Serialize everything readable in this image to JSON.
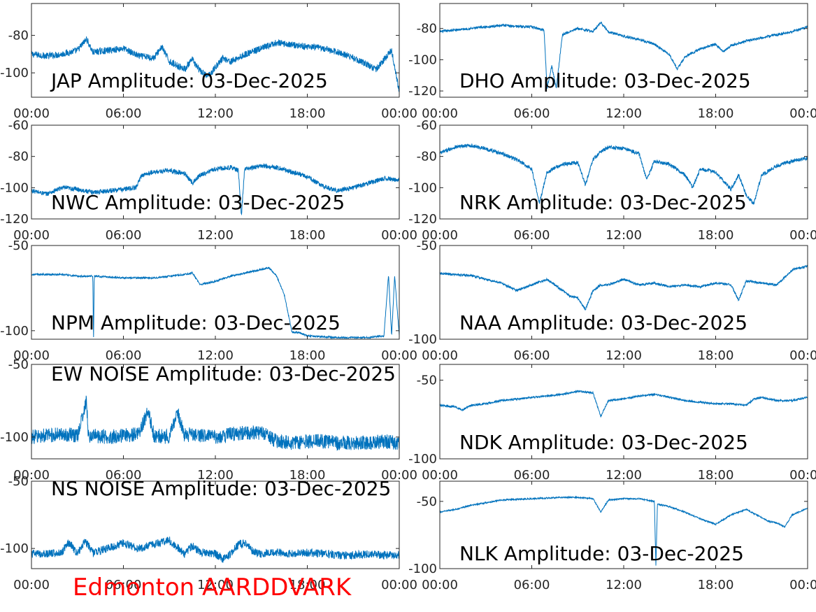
{
  "station_label": "Edmonton AARDDVARK",
  "colors": {
    "trace": "#0072bd",
    "station_label": "#ff0000",
    "axes": "#262626",
    "title": "#000000"
  },
  "chart_data": [
    {
      "id": "jap",
      "type": "line",
      "title": "JAP Amplitude: 03-Dec-2025",
      "x_ticks": [
        "00:00",
        "06:00",
        "12:00",
        "18:00",
        "00:00"
      ],
      "ylim": [
        -113,
        -63
      ],
      "y_ticks": [
        -80,
        -100
      ],
      "y_tick_labels": [
        "-80",
        "-100"
      ],
      "grid": false,
      "noise": 1.8,
      "x": [
        0,
        1,
        2,
        3,
        3.6,
        4,
        5,
        6,
        7,
        8,
        8.5,
        9,
        10,
        10.5,
        11,
        11.5,
        12,
        12.5,
        13,
        14,
        15,
        16,
        17,
        18,
        19,
        20,
        21,
        22,
        22.5,
        23,
        23.5,
        24
      ],
      "y": [
        -90,
        -91,
        -90,
        -88,
        -82,
        -89,
        -88,
        -87,
        -91,
        -92,
        -86,
        -94,
        -98,
        -93,
        -99,
        -102,
        -97,
        -92,
        -94,
        -90,
        -87,
        -84,
        -85,
        -86,
        -87,
        -89,
        -92,
        -96,
        -98,
        -93,
        -88,
        -110
      ]
    },
    {
      "id": "dho",
      "type": "line",
      "title": "DHO Amplitude: 03-Dec-2025",
      "x_ticks": [
        "00:00",
        "06:00",
        "12:00",
        "18:00",
        "00:00"
      ],
      "ylim": [
        -124,
        -64
      ],
      "y_ticks": [
        -80,
        -100,
        -120
      ],
      "y_tick_labels": [
        "-80",
        "-100",
        "-120"
      ],
      "grid": false,
      "noise": 0.8,
      "x": [
        0,
        2,
        4,
        6,
        6.8,
        7.0,
        7.3,
        7.6,
        8,
        9,
        10,
        10.5,
        11,
        12,
        13,
        14,
        15,
        15.5,
        16,
        17,
        18,
        18.5,
        19,
        20,
        21,
        22,
        23,
        24
      ],
      "y": [
        -82,
        -80,
        -78,
        -79,
        -81,
        -118,
        -104,
        -118,
        -84,
        -80,
        -82,
        -76,
        -82,
        -85,
        -87,
        -90,
        -97,
        -106,
        -98,
        -93,
        -90,
        -95,
        -91,
        -88,
        -86,
        -84,
        -82,
        -79
      ]
    },
    {
      "id": "nwc",
      "type": "line",
      "title": "NWC Amplitude: 03-Dec-2025",
      "x_ticks": [
        "00:00",
        "06:00",
        "12:00",
        "18:00",
        "00:00"
      ],
      "ylim": [
        -120,
        -60
      ],
      "y_ticks": [
        -60,
        -80,
        -100,
        -120
      ],
      "y_tick_labels": [
        "-60",
        "-80",
        "-100",
        "-120"
      ],
      "grid": false,
      "noise": 1.5,
      "x": [
        0,
        1,
        2,
        3,
        4,
        5,
        6,
        6.8,
        7.2,
        8,
        9,
        10,
        10.5,
        11,
        12,
        13,
        13.5,
        13.7,
        13.9,
        14,
        15,
        16,
        17,
        18,
        19,
        20,
        21,
        22,
        23,
        24
      ],
      "y": [
        -102,
        -104,
        -100,
        -101,
        -103,
        -102,
        -101,
        -100,
        -92,
        -90,
        -89,
        -91,
        -97,
        -92,
        -88,
        -87,
        -89,
        -118,
        -89,
        -88,
        -86,
        -87,
        -90,
        -93,
        -99,
        -102,
        -100,
        -97,
        -94,
        -95
      ]
    },
    {
      "id": "nrk",
      "type": "line",
      "title": "NRK Amplitude: 03-Dec-2025",
      "x_ticks": [
        "00:00",
        "06:00",
        "12:00",
        "18:00",
        "00:00"
      ],
      "ylim": [
        -120,
        -60
      ],
      "y_ticks": [
        -60,
        -80,
        -100,
        -120
      ],
      "y_tick_labels": [
        "-60",
        "-80",
        "-100",
        "-120"
      ],
      "grid": false,
      "noise": 1.2,
      "x": [
        0,
        1,
        2,
        3,
        4,
        5,
        6,
        6.5,
        7,
        8,
        9,
        9.5,
        10,
        10.5,
        11,
        12,
        13,
        13.5,
        14,
        15,
        16,
        16.5,
        17,
        18,
        19,
        19.5,
        20,
        20.5,
        21,
        22,
        23,
        24
      ],
      "y": [
        -78,
        -74,
        -73,
        -75,
        -78,
        -82,
        -88,
        -110,
        -90,
        -85,
        -84,
        -98,
        -82,
        -77,
        -74,
        -75,
        -78,
        -95,
        -83,
        -85,
        -92,
        -100,
        -88,
        -90,
        -101,
        -92,
        -105,
        -110,
        -92,
        -86,
        -83,
        -81
      ]
    },
    {
      "id": "npm",
      "type": "line",
      "title": "NPM Amplitude: 03-Dec-2025",
      "x_ticks": [
        "00:00",
        "06:00",
        "12:00",
        "18:00",
        "00:00"
      ],
      "ylim": [
        -105,
        -50
      ],
      "y_ticks": [
        -50,
        -100
      ],
      "y_tick_labels": [
        "-50",
        "-100"
      ],
      "grid": false,
      "noise": 0.5,
      "x": [
        0,
        2,
        3,
        4,
        4.05,
        4.1,
        6,
        8,
        10,
        10.5,
        11,
        12,
        13,
        14,
        15,
        15.5,
        16,
        16.5,
        17,
        17.5,
        18,
        20,
        21,
        22,
        23,
        23.3,
        23.5,
        23.7,
        24
      ],
      "y": [
        -67,
        -67,
        -68,
        -68,
        -104,
        -68,
        -69,
        -69,
        -67,
        -66,
        -73,
        -71,
        -68,
        -66,
        -64,
        -63,
        -68,
        -79,
        -101,
        -101,
        -103,
        -104,
        -104,
        -104,
        -103,
        -67,
        -103,
        -68,
        -103
      ]
    },
    {
      "id": "naa",
      "type": "line",
      "title": "NAA Amplitude: 03-Dec-2025",
      "x_ticks": [
        "00:00",
        "06:00",
        "12:00",
        "18:00",
        "00:00"
      ],
      "ylim": [
        -100,
        -50
      ],
      "y_ticks": [
        -50,
        -100
      ],
      "y_tick_labels": [
        "-50",
        "-100"
      ],
      "grid": false,
      "noise": 0.6,
      "x": [
        0,
        2,
        4,
        5,
        6,
        7,
        8,
        8.5,
        9,
        9.5,
        10,
        10.5,
        11,
        12,
        13,
        14,
        15,
        16,
        17,
        18,
        19,
        19.5,
        20,
        21,
        22,
        23,
        24
      ],
      "y": [
        -65,
        -66,
        -70,
        -74,
        -71,
        -68,
        -74,
        -77,
        -78,
        -84,
        -74,
        -71,
        -71,
        -68,
        -71,
        -70,
        -72,
        -71,
        -72,
        -70,
        -71,
        -79,
        -69,
        -70,
        -71,
        -63,
        -61
      ]
    },
    {
      "id": "ew_noise",
      "type": "line",
      "title": "EW NOISE Amplitude: 03-Dec-2025",
      "x_ticks": [
        "00:00",
        "06:00",
        "12:00",
        "18:00",
        "00:00"
      ],
      "ylim": [
        -115,
        -50
      ],
      "y_ticks": [
        -50,
        -100
      ],
      "y_tick_labels": [
        "-50",
        "-100"
      ],
      "grid": false,
      "noise": 5,
      "x": [
        0,
        1,
        2,
        3,
        3.6,
        3.7,
        4,
        5,
        6,
        7,
        7.6,
        8,
        9,
        9.5,
        10,
        10.5,
        11,
        12,
        13,
        14,
        15,
        16,
        17,
        18,
        19,
        20,
        21,
        22,
        23,
        24
      ],
      "y": [
        -100,
        -99,
        -98,
        -99,
        -75,
        -100,
        -99,
        -100,
        -99,
        -98,
        -82,
        -99,
        -100,
        -82,
        -99,
        -98,
        -99,
        -100,
        -98,
        -97,
        -97,
        -103,
        -104,
        -103,
        -103,
        -104,
        -104,
        -104,
        -103,
        -104
      ]
    },
    {
      "id": "ndk",
      "type": "line",
      "title": "NDK Amplitude: 03-Dec-2025",
      "x_ticks": [
        "00:00",
        "06:00",
        "12:00",
        "18:00",
        "00:00"
      ],
      "ylim": [
        -100,
        -40
      ],
      "y_ticks": [
        -50,
        -100
      ],
      "y_tick_labels": [
        "-50",
        "-100"
      ],
      "grid": false,
      "noise": 0.6,
      "x": [
        0,
        1,
        1.5,
        2,
        3,
        4,
        5,
        6,
        7,
        8,
        9,
        10,
        10.5,
        11,
        12,
        13,
        14,
        15,
        16,
        17,
        18,
        19,
        20,
        20.5,
        21,
        22,
        23,
        24
      ],
      "y": [
        -66,
        -67,
        -69,
        -66,
        -65,
        -63,
        -62,
        -61,
        -60,
        -59,
        -57,
        -58,
        -73,
        -63,
        -62,
        -60,
        -59,
        -61,
        -63,
        -64,
        -65,
        -65,
        -66,
        -62,
        -61,
        -63,
        -63,
        -61
      ]
    },
    {
      "id": "ns_noise",
      "type": "line",
      "title": "NS NOISE Amplitude: 03-Dec-2025",
      "x_ticks": [
        "00:00",
        "06:00",
        "12:00",
        "18:00",
        "00:00"
      ],
      "ylim": [
        -115,
        -50
      ],
      "y_ticks": [
        -50,
        -100
      ],
      "y_tick_labels": [
        "-50",
        "-100"
      ],
      "grid": false,
      "noise": 3,
      "x": [
        0,
        1,
        2,
        2.3,
        2.5,
        3,
        3.5,
        4,
        5,
        6,
        7,
        8,
        9,
        10,
        10.5,
        11,
        12,
        12.5,
        13,
        13.5,
        14,
        14.5,
        15,
        16,
        17,
        18,
        19,
        20,
        21,
        22,
        23,
        24
      ],
      "y": [
        -104,
        -104,
        -103,
        -96,
        -96,
        -104,
        -94,
        -103,
        -100,
        -96,
        -100,
        -97,
        -94,
        -104,
        -98,
        -103,
        -104,
        -108,
        -104,
        -97,
        -96,
        -103,
        -104,
        -103,
        -104,
        -103,
        -104,
        -105,
        -105,
        -104,
        -105,
        -105
      ]
    },
    {
      "id": "nlk",
      "type": "line",
      "title": "NLK Amplitude: 03-Dec-2025",
      "x_ticks": [
        "00:00",
        "06:00",
        "12:00",
        "18:00",
        "00:00"
      ],
      "ylim": [
        -100,
        -35
      ],
      "y_ticks": [
        -50,
        -100
      ],
      "y_tick_labels": [
        "-50",
        "-100"
      ],
      "grid": false,
      "noise": 0.5,
      "x": [
        0,
        1,
        2,
        3,
        4,
        6,
        8,
        9,
        10,
        10.5,
        11,
        12,
        13,
        14,
        14.1,
        14.2,
        15,
        16,
        17,
        18,
        19,
        20,
        21,
        21.5,
        22,
        22.5,
        23,
        24
      ],
      "y": [
        -58,
        -56,
        -53,
        -51,
        -49,
        -48,
        -47,
        -47,
        -48,
        -58,
        -49,
        -48,
        -48,
        -50,
        -98,
        -52,
        -54,
        -58,
        -63,
        -67,
        -60,
        -56,
        -62,
        -65,
        -66,
        -69,
        -60,
        -55
      ]
    }
  ]
}
